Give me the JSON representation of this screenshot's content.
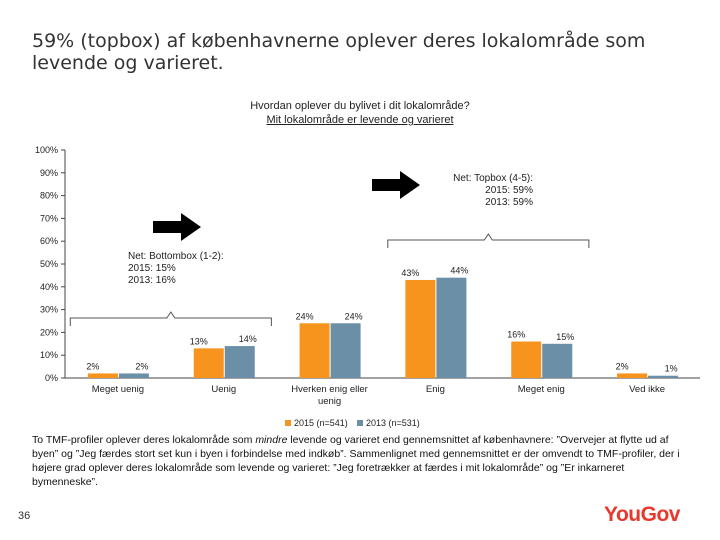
{
  "slide": {
    "title": "59% (topbox) af københavnerne oplever deres lokalområde som levende og varieret.",
    "page_number": "36",
    "logo_text": "YouGov"
  },
  "footnote": {
    "part1": "To TMF-profiler oplever deres lokalområde som ",
    "italic": "mindre",
    "part2": " levende og varieret end gennemsnittet af københavnere: ”Overvejer at flytte ud af byen” og ”Jeg færdes stort set kun i byen i forbindelse med indkøb”. Sammenlignet med gennemsnittet er der omvendt to TMF-profiler, der i højere grad oplever deres lokalområde som levende og varieret: ”Jeg foretrækker at færdes i mit lokalområde” og ”Er inkarneret bymenneske”."
  },
  "chart_data": {
    "type": "bar",
    "title": "Hvordan oplever du bylivet i dit lokalområde?",
    "subtitle": "Mit lokalområde er levende og varieret",
    "categories": [
      "Meget uenig",
      "Uenig",
      "Hverken enig eller uenig",
      "Enig",
      "Meget enig",
      "Ved ikke"
    ],
    "series": [
      {
        "name": "2015 (n=541)",
        "values": [
          2,
          13,
          24,
          43,
          16,
          2
        ],
        "labels": [
          "2%",
          "13%",
          "24%",
          "43%",
          "16%",
          "2%"
        ],
        "color": "#f7941d"
      },
      {
        "name": "2013 (n=531)",
        "values": [
          2,
          14,
          24,
          44,
          15,
          1
        ],
        "labels": [
          "2%",
          "14%",
          "24%",
          "44%",
          "15%",
          "1%"
        ],
        "color": "#6a8fa6"
      }
    ],
    "y_ticks": [
      "0%",
      "10%",
      "20%",
      "30%",
      "40%",
      "50%",
      "60%",
      "70%",
      "80%",
      "90%",
      "100%"
    ],
    "ylim": [
      0,
      100
    ],
    "legend_position": "bottom",
    "annotations": [
      {
        "lines": [
          "Net: Bottombox (1-2):",
          "2015: 15%",
          "2013: 16%"
        ]
      },
      {
        "lines": [
          "Net: Topbox (4-5):",
          "2015: 59%",
          "2013: 59%"
        ]
      }
    ]
  }
}
